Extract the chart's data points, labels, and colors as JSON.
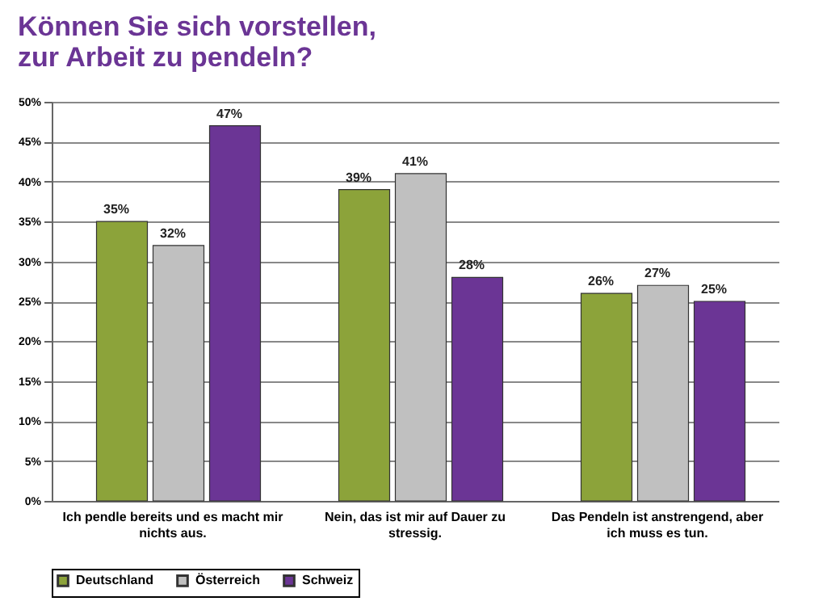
{
  "chart_data": {
    "type": "bar",
    "title": [
      "Können Sie sich vorstellen,",
      "zur Arbeit zu pendeln?"
    ],
    "categories": [
      "Ich pendle bereits und es macht mir nichts aus.",
      "Nein, das ist mir auf Dauer zu stressig.",
      "Das Pendeln ist anstrengend, aber ich muss es tun."
    ],
    "series": [
      {
        "name": "Deutschland",
        "color": "#8ca33a",
        "values": [
          35,
          39,
          26
        ]
      },
      {
        "name": "Österreich",
        "color": "#c0c0c0",
        "values": [
          32,
          41,
          27
        ]
      },
      {
        "name": "Schweiz",
        "color": "#6b3595",
        "values": [
          47,
          28,
          25
        ]
      }
    ],
    "ylim": [
      0,
      50
    ],
    "yticks": [
      {
        "value": 0,
        "label": "0%"
      },
      {
        "value": 5,
        "label": "5%"
      },
      {
        "value": 10,
        "label": "10%"
      },
      {
        "value": 15,
        "label": "15%"
      },
      {
        "value": 20,
        "label": "20%"
      },
      {
        "value": 25,
        "label": "25%"
      },
      {
        "value": 30,
        "label": "30%"
      },
      {
        "value": 35,
        "label": "35%"
      },
      {
        "value": 40,
        "label": "40%"
      },
      {
        "value": 45,
        "label": "45%"
      },
      {
        "value": 50,
        "label": "50%"
      }
    ],
    "value_labels": [
      [
        "35%",
        "39%",
        "26%"
      ],
      [
        "32%",
        "41%",
        "27%"
      ],
      [
        "47%",
        "28%",
        "25%"
      ]
    ],
    "grid": "y",
    "legend": "bottom"
  }
}
